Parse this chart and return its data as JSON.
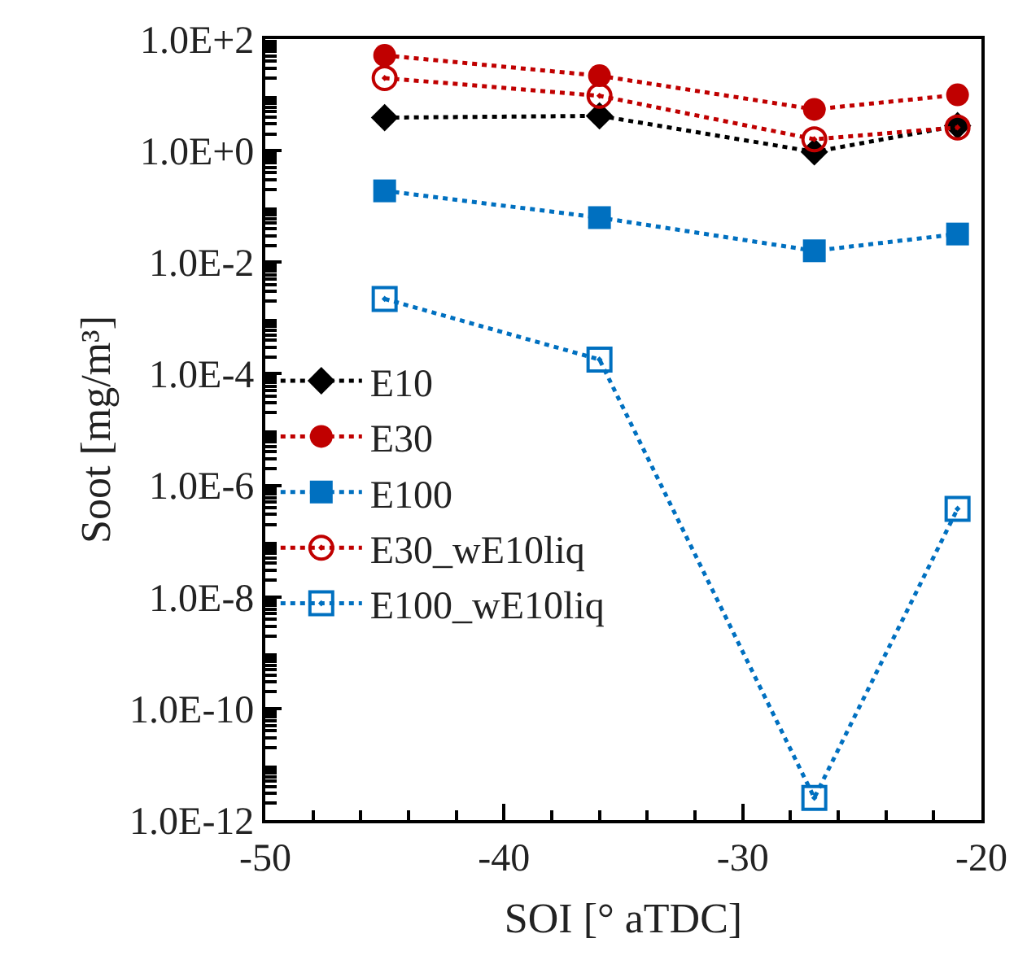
{
  "chart_data": {
    "type": "line",
    "xlabel": "SOI [° aTDC]",
    "ylabel": "Soot [mg/m³]",
    "x": [
      -45,
      -36,
      -27,
      -21
    ],
    "series": [
      {
        "name": "E10",
        "color": "#000000",
        "marker": "diamond",
        "values": [
          3.9,
          4.2,
          0.95,
          2.8
        ]
      },
      {
        "name": "E30",
        "color": "#c00000",
        "marker": "circle",
        "values": [
          51,
          22,
          5.5,
          10
        ]
      },
      {
        "name": "E100",
        "color": "#0070c0",
        "marker": "square",
        "values": [
          0.19,
          0.063,
          0.016,
          0.032
        ]
      },
      {
        "name": "E30_wE10liq",
        "color": "#c00000",
        "marker": "circle-open",
        "values": [
          20,
          9.6,
          1.6,
          2.6
        ]
      },
      {
        "name": "E100_wE10liq",
        "color": "#0070c0",
        "marker": "square-open",
        "values": [
          0.0022,
          0.00018,
          2.5e-12,
          3.8e-07
        ]
      }
    ],
    "log": "y",
    "line_style": "dotted",
    "legend": "left",
    "xlim": [
      -50,
      -20
    ],
    "xticks": [
      -50,
      -40,
      -30,
      -20
    ],
    "ylim": [
      1e-12,
      100
    ],
    "yticks": [
      {
        "value": 100,
        "label": "1.0E+2"
      },
      {
        "value": 1,
        "label": "1.0E+0"
      },
      {
        "value": 0.01,
        "label": "1.0E-2"
      },
      {
        "value": 0.0001,
        "label": "1.0E-4"
      },
      {
        "value": 1e-06,
        "label": "1.0E-6"
      },
      {
        "value": 1e-08,
        "label": "1.0E-8"
      },
      {
        "value": 1e-10,
        "label": "1.0E-10"
      },
      {
        "value": 1e-12,
        "label": "1.0E-12"
      }
    ]
  }
}
